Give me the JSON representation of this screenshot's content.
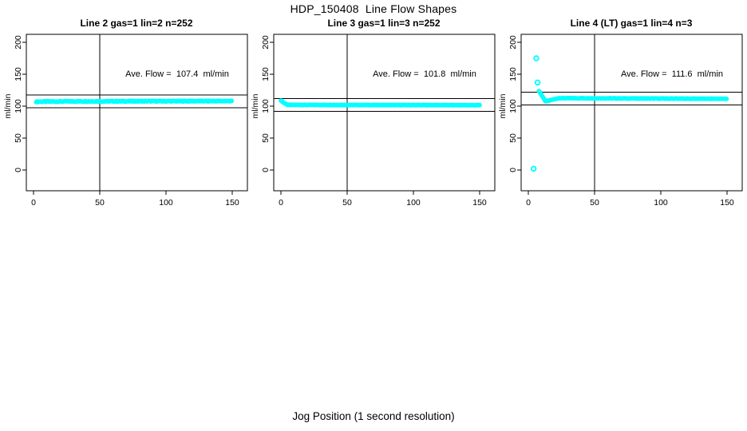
{
  "figure": {
    "title": "HDP_150408  Line Flow Shapes",
    "xlabel": "Jog Position (1 second resolution)",
    "background": "#ffffff",
    "point_color": "#00ffff",
    "axis_color": "#000000"
  },
  "chart_data": [
    {
      "type": "scatter",
      "title": "Line 2 gas=1 lin=2 n=252",
      "ylabel": "ml/min",
      "annotation": "Ave. Flow =  107.4  ml/min",
      "ave_flow": 107.4,
      "n": 252,
      "x_ticks": [
        0,
        50,
        100,
        150
      ],
      "y_ticks": [
        0,
        50,
        100,
        150,
        200
      ],
      "xlim": [
        0,
        150
      ],
      "ylim": [
        0,
        200
      ],
      "ref_line_x": 50,
      "ref_lines_y": [
        117.4,
        97.4
      ],
      "trace": {
        "breakpoints": [
          [
            2,
            107.0
          ],
          [
            30,
            107.5
          ],
          [
            150,
            108.0
          ]
        ],
        "step": 0.6,
        "noise_amp": 0.7
      },
      "outliers": []
    },
    {
      "type": "scatter",
      "title": "Line 3 gas=1 lin=3 n=252",
      "ylabel": "ml/min",
      "annotation": "Ave. Flow =  101.8  ml/min",
      "ave_flow": 101.8,
      "n": 252,
      "x_ticks": [
        0,
        50,
        100,
        150
      ],
      "y_ticks": [
        0,
        50,
        100,
        150,
        200
      ],
      "xlim": [
        0,
        150
      ],
      "ylim": [
        0,
        200
      ],
      "ref_line_x": 50,
      "ref_lines_y": [
        111.8,
        91.8
      ],
      "trace": {
        "breakpoints": [
          [
            0,
            109.0
          ],
          [
            2,
            105.5
          ],
          [
            5,
            102.0
          ],
          [
            150,
            101.5
          ]
        ],
        "step": 0.6,
        "noise_amp": 0.35
      },
      "outliers": []
    },
    {
      "type": "scatter",
      "title": "Line 4 (LT) gas=1 lin=4 n=3",
      "ylabel": "ml/min",
      "annotation": "Ave. Flow =  111.6  ml/min",
      "ave_flow": 111.6,
      "n": 3,
      "x_ticks": [
        0,
        50,
        100,
        150
      ],
      "y_ticks": [
        0,
        50,
        100,
        150,
        200
      ],
      "xlim": [
        0,
        150
      ],
      "ylim": [
        0,
        200
      ],
      "ref_line_x": 50,
      "ref_lines_y": [
        121.6,
        101.6
      ],
      "trace": {
        "breakpoints": [
          [
            8,
            124.0
          ],
          [
            13,
            107.5
          ],
          [
            23,
            112.5
          ],
          [
            150,
            111.5
          ]
        ],
        "step": 0.6,
        "noise_amp": 0.35
      },
      "outliers": [
        [
          4,
          2
        ],
        [
          6,
          175
        ],
        [
          7,
          137
        ]
      ]
    }
  ]
}
